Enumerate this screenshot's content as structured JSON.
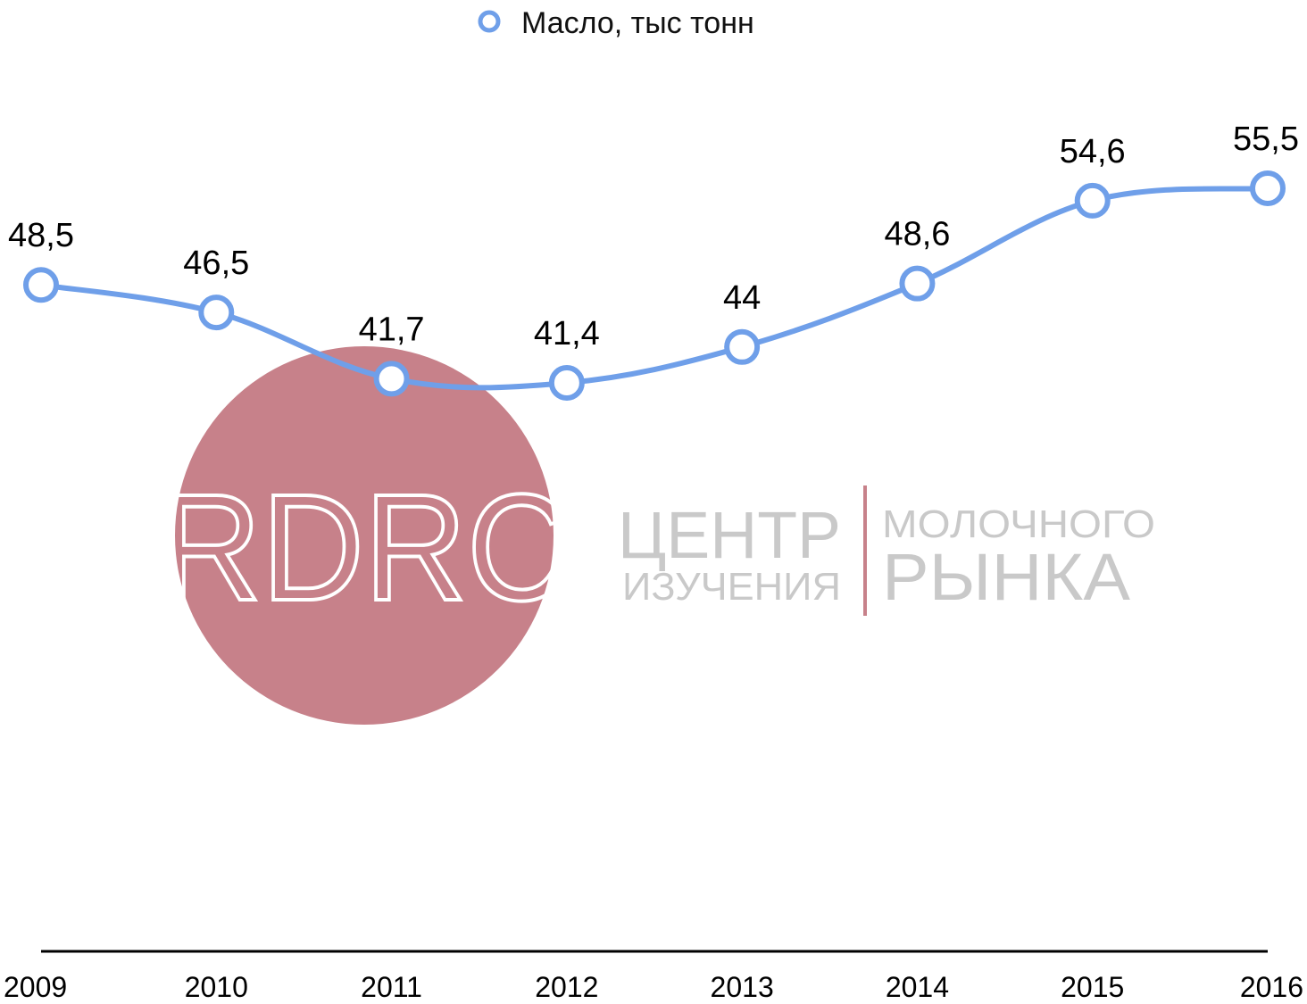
{
  "legend": {
    "label": "Масло, тыс тонн"
  },
  "watermark": {
    "logo_text": "RDRC",
    "line1_left": "ЦЕНТР",
    "line2_left": "ИЗУЧЕНИЯ",
    "line1_right": "МОЛОЧНОГО",
    "line2_right": "РЫНКА",
    "circle_color": "#c7818a"
  },
  "chart_data": {
    "type": "line",
    "categories": [
      "2009",
      "2010",
      "2011",
      "2012",
      "2013",
      "2014",
      "2015",
      "2016"
    ],
    "series": [
      {
        "name": "Масло, тыс тонн",
        "values": [
          48.5,
          46.5,
          41.7,
          41.4,
          44,
          48.6,
          54.6,
          55.5
        ],
        "labels": [
          "48,5",
          "46,5",
          "41,7",
          "41,4",
          "44",
          "48,6",
          "54,6",
          "55,5"
        ],
        "color": "#6f9fe9"
      }
    ]
  }
}
